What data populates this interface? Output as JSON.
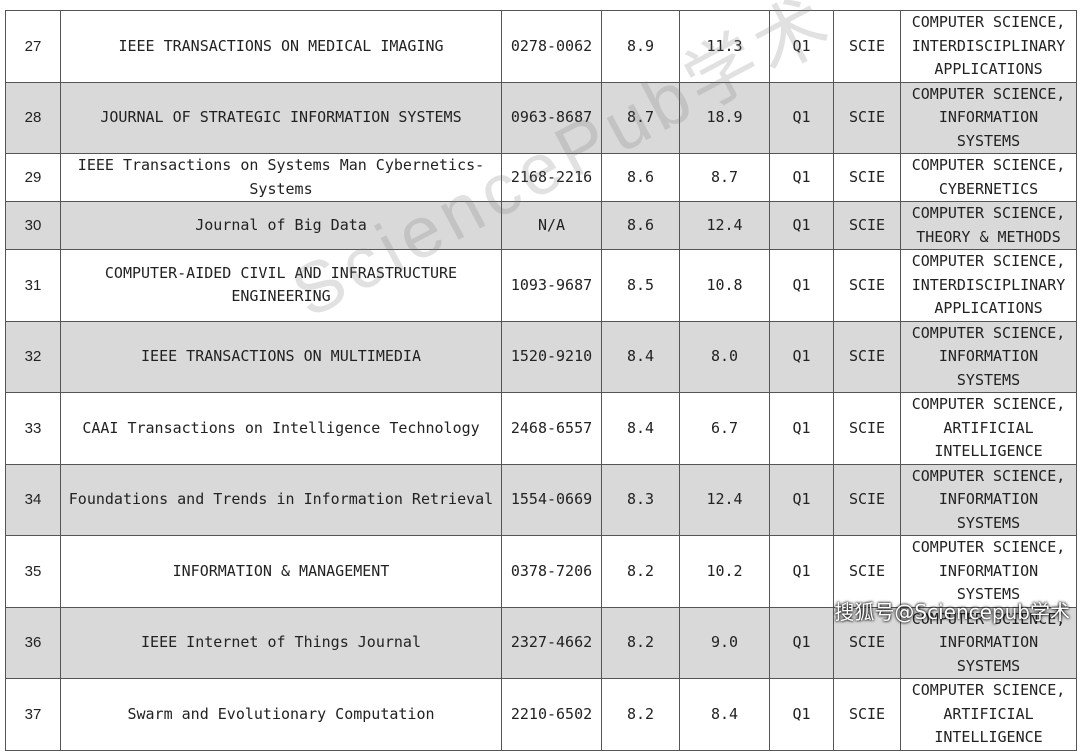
{
  "rows": [
    {
      "rank": "27",
      "title": "IEEE TRANSACTIONS ON MEDICAL IMAGING",
      "issn": "0278-0062",
      "if": "8.9",
      "cs": "11.3",
      "q": "Q1",
      "idx": "SCIE",
      "cat": [
        "COMPUTER SCIENCE,",
        "INTERDISCIPLINARY",
        "APPLICATIONS"
      ]
    },
    {
      "rank": "28",
      "title": "JOURNAL OF STRATEGIC INFORMATION SYSTEMS",
      "issn": "0963-8687",
      "if": "8.7",
      "cs": "18.9",
      "q": "Q1",
      "idx": "SCIE",
      "cat": [
        "COMPUTER SCIENCE,",
        "INFORMATION SYSTEMS"
      ]
    },
    {
      "rank": "29",
      "title": "IEEE Transactions on Systems Man Cybernetics-Systems",
      "issn": "2168-2216",
      "if": "8.6",
      "cs": "8.7",
      "q": "Q1",
      "idx": "SCIE",
      "cat": [
        "COMPUTER SCIENCE,",
        "CYBERNETICS"
      ]
    },
    {
      "rank": "30",
      "title": "Journal of Big Data",
      "issn": "N/A",
      "if": "8.6",
      "cs": "12.4",
      "q": "Q1",
      "idx": "SCIE",
      "cat": [
        "COMPUTER SCIENCE,",
        "THEORY & METHODS"
      ]
    },
    {
      "rank": "31",
      "title": "COMPUTER-AIDED CIVIL AND INFRASTRUCTURE ENGINEERING",
      "issn": "1093-9687",
      "if": "8.5",
      "cs": "10.8",
      "q": "Q1",
      "idx": "SCIE",
      "cat": [
        "COMPUTER SCIENCE,",
        "INTERDISCIPLINARY",
        "APPLICATIONS"
      ]
    },
    {
      "rank": "32",
      "title": "IEEE TRANSACTIONS ON MULTIMEDIA",
      "issn": "1520-9210",
      "if": "8.4",
      "cs": "8.0",
      "q": "Q1",
      "idx": "SCIE",
      "cat": [
        "COMPUTER SCIENCE,",
        "INFORMATION SYSTEMS"
      ]
    },
    {
      "rank": "33",
      "title": "CAAI Transactions on Intelligence Technology",
      "issn": "2468-6557",
      "if": "8.4",
      "cs": "6.7",
      "q": "Q1",
      "idx": "SCIE",
      "cat": [
        "COMPUTER SCIENCE,",
        "ARTIFICIAL",
        "INTELLIGENCE"
      ]
    },
    {
      "rank": "34",
      "title": "Foundations and Trends in Information Retrieval",
      "issn": "1554-0669",
      "if": "8.3",
      "cs": "12.4",
      "q": "Q1",
      "idx": "SCIE",
      "cat": [
        "COMPUTER SCIENCE,",
        "INFORMATION SYSTEMS"
      ]
    },
    {
      "rank": "35",
      "title": "INFORMATION & MANAGEMENT",
      "issn": "0378-7206",
      "if": "8.2",
      "cs": "10.2",
      "q": "Q1",
      "idx": "SCIE",
      "cat": [
        "COMPUTER SCIENCE,",
        "INFORMATION SYSTEMS"
      ]
    },
    {
      "rank": "36",
      "title": "IEEE Internet of Things Journal",
      "issn": "2327-4662",
      "if": "8.2",
      "cs": "9.0",
      "q": "Q1",
      "idx": "SCIE",
      "cat": [
        "COMPUTER SCIENCE,",
        "INFORMATION SYSTEMS"
      ]
    },
    {
      "rank": "37",
      "title": "Swarm and Evolutionary Computation",
      "issn": "2210-6502",
      "if": "8.2",
      "cs": "8.4",
      "q": "Q1",
      "idx": "SCIE",
      "cat": [
        "COMPUTER SCIENCE,",
        "ARTIFICIAL",
        "INTELLIGENCE"
      ]
    }
  ],
  "watermark": "SciencePub学术",
  "source_label": "搜狐号@Sciencepub学术",
  "colors": {
    "shade": "#d9d9d9",
    "border": "#555555",
    "text": "#222222"
  }
}
